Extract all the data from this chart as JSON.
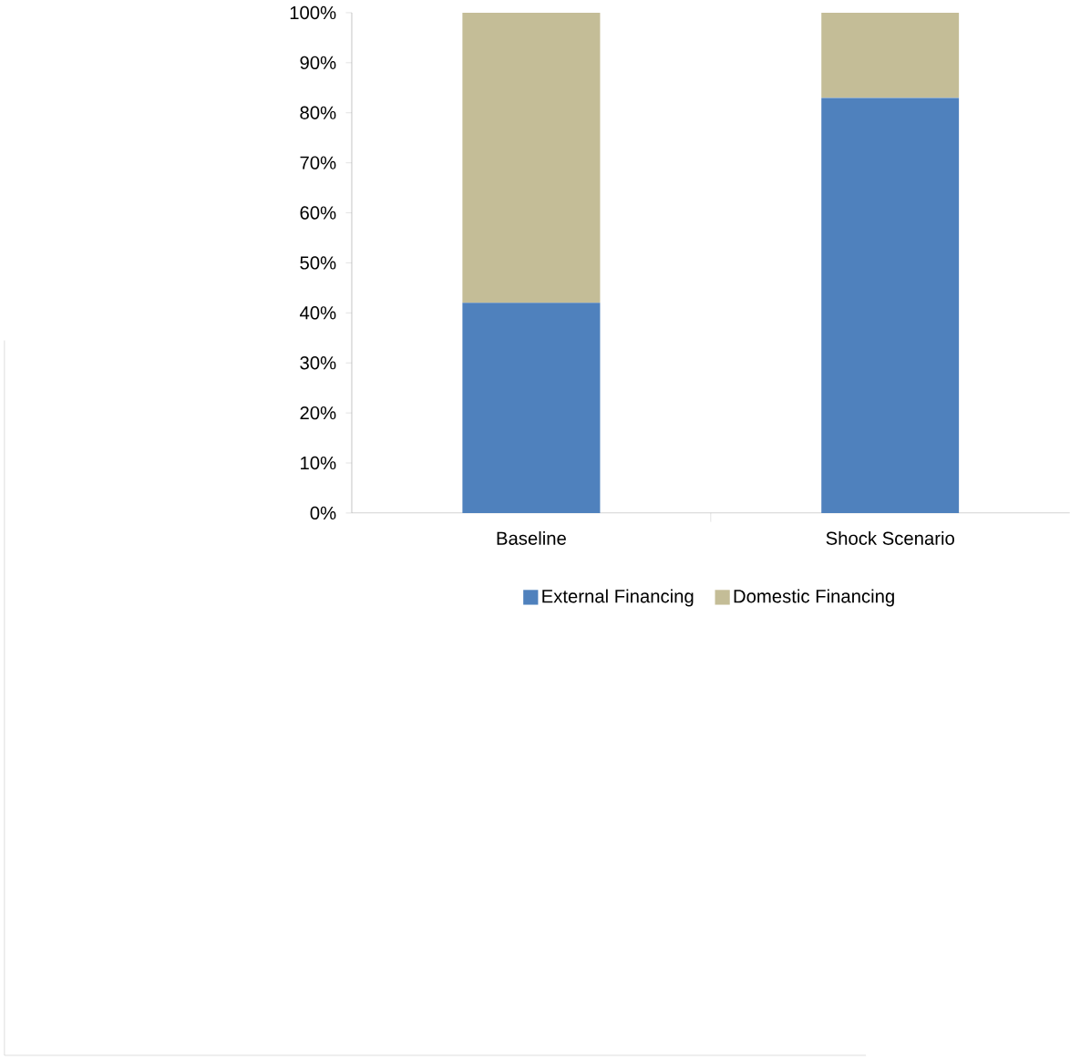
{
  "chart_data": {
    "type": "bar",
    "stacked": true,
    "categories": [
      "Baseline",
      "Shock Scenario"
    ],
    "series": [
      {
        "name": "External Financing",
        "color": "#4f81bd",
        "values": [
          42,
          83
        ]
      },
      {
        "name": "Domestic Financing",
        "color": "#c4bd97",
        "values": [
          58,
          17
        ]
      }
    ],
    "ylim": [
      0,
      100
    ],
    "yticks": [
      {
        "value": 0,
        "label": "0%"
      },
      {
        "value": 10,
        "label": "10%"
      },
      {
        "value": 20,
        "label": "20%"
      },
      {
        "value": 30,
        "label": "30%"
      },
      {
        "value": 40,
        "label": "40%"
      },
      {
        "value": 50,
        "label": "50%"
      },
      {
        "value": 60,
        "label": "60%"
      },
      {
        "value": 70,
        "label": "70%"
      },
      {
        "value": 80,
        "label": "80%"
      },
      {
        "value": 90,
        "label": "90%"
      },
      {
        "value": 100,
        "label": "100%"
      }
    ],
    "grid": false,
    "legend": "bottom"
  }
}
